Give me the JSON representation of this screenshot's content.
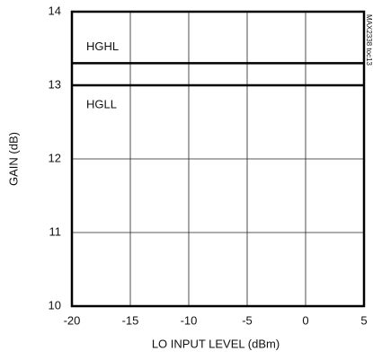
{
  "chart_data": {
    "type": "line",
    "x_label": "LO INPUT LEVEL (dBm)",
    "y_label": "GAIN (dB)",
    "annotation": "MAX2338 toc13",
    "x": [
      -20,
      5
    ],
    "series": [
      {
        "name": "HGHL",
        "color": "#000000",
        "values": [
          13.3,
          13.3
        ]
      },
      {
        "name": "HGLL",
        "color": "#000000",
        "values": [
          13.0,
          13.0
        ]
      }
    ],
    "xlim": [
      -20,
      5
    ],
    "xticks": [
      -20,
      -15,
      -10,
      -5,
      0,
      5
    ],
    "ylim": [
      10,
      14
    ],
    "yticks": [
      10,
      11,
      12,
      13,
      14
    ],
    "grid": true
  }
}
